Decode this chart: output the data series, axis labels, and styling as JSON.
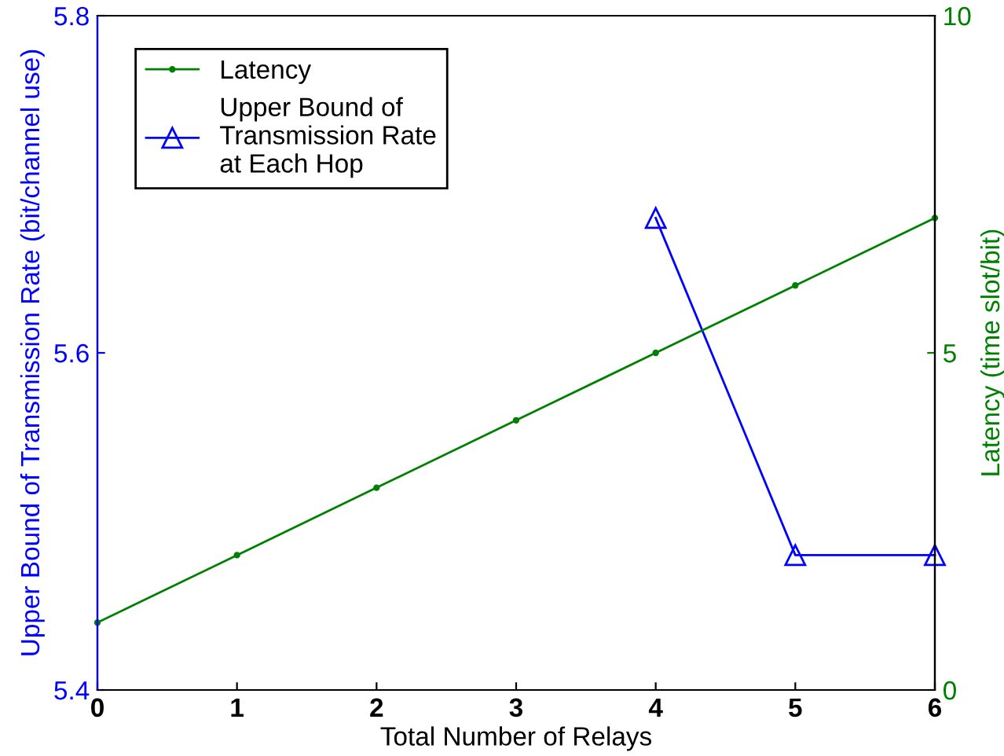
{
  "chart_data": {
    "type": "line",
    "xlabel": "Total Number of Relays",
    "ylabel": "Upper Bound of Transmission Rate (bit/channel use)",
    "y2label": "Latency (time slot/bit)",
    "series": [
      {
        "name": "Latency",
        "color": "#008000",
        "axis": "y2",
        "marker": "circle",
        "x": [
          0,
          1,
          2,
          3,
          4,
          5,
          6
        ],
        "values": [
          1,
          2,
          3,
          4,
          5,
          6,
          7
        ]
      },
      {
        "name": "Upper Bound of\nTransmission Rate\nat Each Hop",
        "color": "#0000ff",
        "marker": "triangle",
        "x": [
          4,
          5,
          6
        ],
        "values": [
          5.68,
          5.48,
          5.48
        ]
      }
    ],
    "xlim": [
      0,
      6
    ],
    "xticks": [
      0,
      1,
      2,
      3,
      4,
      5,
      6
    ],
    "ylim": [
      5.4,
      5.8
    ],
    "yticks": [
      5.4,
      5.6,
      5.8
    ],
    "y2lim": [
      0,
      10
    ],
    "y2ticks": [
      0,
      5,
      10
    ],
    "grid": false,
    "legend": "top left",
    "line_style": "solid"
  }
}
